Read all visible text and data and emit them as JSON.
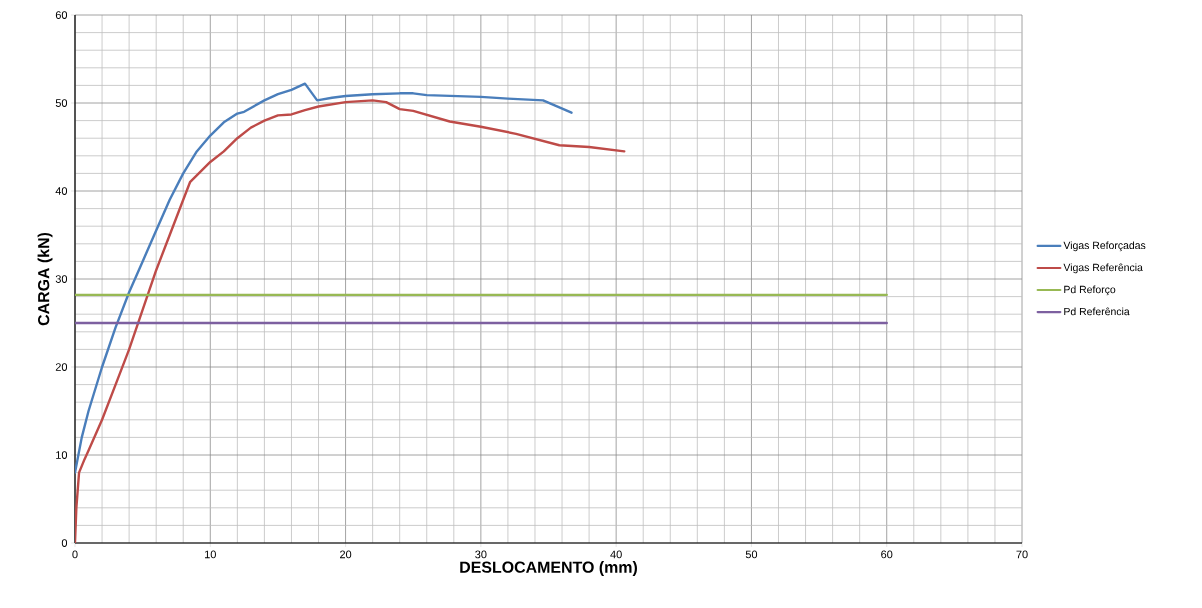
{
  "chart_data": {
    "type": "line",
    "xlabel": "DESLOCAMENTO (mm)",
    "ylabel": "CARGA (kN)",
    "xlim": [
      0,
      70
    ],
    "xticks": [
      0,
      10,
      20,
      30,
      40,
      50,
      60,
      70
    ],
    "ylim": [
      0,
      60
    ],
    "yticks": [
      0,
      10,
      20,
      30,
      40,
      50,
      60
    ],
    "grid": true,
    "legend": "right",
    "marker": "none",
    "line_style": "solid",
    "series": [
      {
        "name": "Vigas Reforçadas",
        "color": "#4a7ebb",
        "x": [
          0,
          0.5,
          1,
          2,
          3,
          4,
          5,
          6,
          7,
          8,
          9,
          10,
          11,
          12,
          12.5,
          14,
          15,
          16,
          17,
          17.9,
          19,
          20,
          22,
          24,
          25,
          26,
          28,
          30,
          32,
          34.6,
          35.5,
          36.7
        ],
        "values": [
          8,
          12,
          15,
          20,
          24.5,
          28.5,
          32,
          35.5,
          39,
          42,
          44.5,
          46.3,
          47.8,
          48.8,
          49,
          50.3,
          51,
          51.5,
          52.2,
          50.3,
          50.6,
          50.8,
          51,
          51.1,
          51.1,
          50.9,
          50.8,
          50.7,
          50.5,
          50.3,
          49.7,
          48.9
        ]
      },
      {
        "name": "Vigas Referência",
        "color": "#be4b48",
        "x": [
          0,
          0.1,
          0.3,
          0.7,
          1,
          2,
          3,
          4,
          5,
          6,
          7,
          8,
          8.5,
          10,
          11,
          12,
          13,
          14,
          15,
          16,
          17,
          18,
          20,
          22,
          23,
          24,
          25,
          27.7,
          30,
          32.6,
          35.8,
          38,
          40.6
        ],
        "values": [
          0,
          4,
          8,
          9.5,
          10.5,
          14,
          18,
          22,
          26.5,
          31,
          35,
          39,
          41,
          43.3,
          44.5,
          46,
          47.2,
          48,
          48.6,
          48.7,
          49.2,
          49.6,
          50.1,
          50.3,
          50.1,
          49.3,
          49.1,
          47.9,
          47.3,
          46.5,
          45.2,
          45,
          44.5
        ]
      },
      {
        "name": "Pd Reforço",
        "color": "#98b954",
        "x": [
          0,
          60
        ],
        "values": [
          28.2,
          28.2
        ]
      },
      {
        "name": "Pd Referência",
        "color": "#7d60a0",
        "x": [
          0,
          60
        ],
        "values": [
          25,
          25
        ]
      }
    ]
  }
}
